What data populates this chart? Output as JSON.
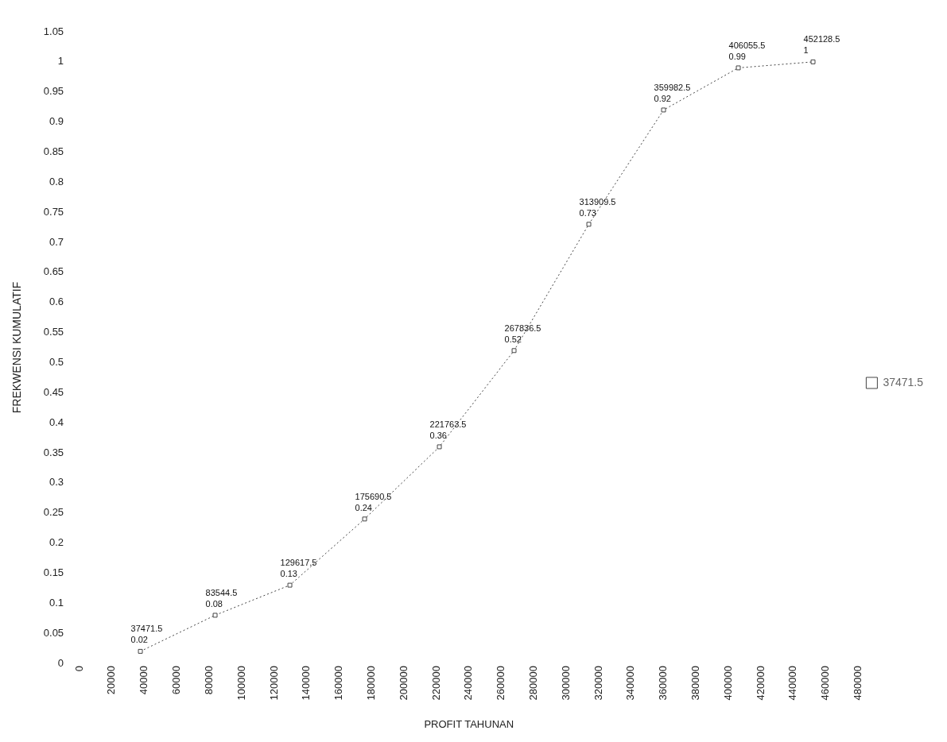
{
  "chart_data": {
    "type": "line",
    "xlabel": "PROFIT TAHUNAN",
    "ylabel": "FREKWENSI KUMULATIF",
    "x": [
      37471.5,
      83544.5,
      129617.5,
      175690.5,
      221763.5,
      267836.5,
      313909.5,
      359982.5,
      406055.5,
      452128.5
    ],
    "series": [
      {
        "name": "37471.5",
        "color": "#444444",
        "values": [
          0.02,
          0.08,
          0.13,
          0.24,
          0.36,
          0.52,
          0.73,
          0.92,
          0.99,
          1
        ],
        "value_labels": [
          "37471.5\n0.02",
          "83544.5\n0.08",
          "129617.5\n0.13",
          "175690.5\n0.24",
          "221763.5\n0.36",
          "267836.5\n0.52",
          "313909.5\n0.73",
          "359982.5\n0.92",
          "406055.5\n0.99",
          "452128.5\n1"
        ]
      }
    ],
    "xlim": [
      0,
      480000
    ],
    "xticks": [
      0,
      20000,
      40000,
      60000,
      80000,
      100000,
      120000,
      140000,
      160000,
      180000,
      200000,
      220000,
      240000,
      260000,
      280000,
      300000,
      320000,
      340000,
      360000,
      380000,
      400000,
      420000,
      440000,
      460000,
      480000
    ],
    "ylim": [
      0,
      1.05
    ],
    "yticks": [
      0,
      0.05,
      0.1,
      0.15,
      0.2,
      0.25,
      0.3,
      0.35,
      0.4,
      0.45,
      0.5,
      0.55,
      0.6,
      0.65,
      0.7,
      0.75,
      0.8,
      0.85,
      0.9,
      0.95,
      1,
      1.05
    ],
    "grid": false,
    "legend": "right",
    "marker": "square",
    "line_style": "dotted"
  }
}
